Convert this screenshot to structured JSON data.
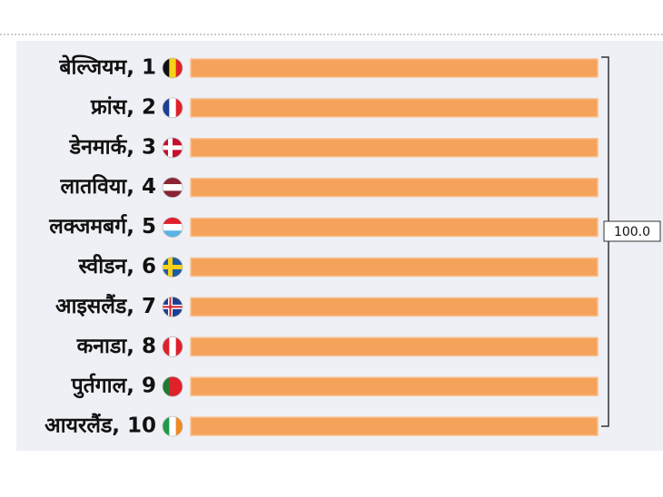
{
  "chart_data": {
    "type": "bar",
    "orientation": "horizontal",
    "categories": [
      "बेल्जियम, 1",
      "फ्रांस, 2",
      "डेनमार्क, 3",
      "लातविया, 4",
      "लक्जमबर्ग, 5",
      "स्वीडन, 6",
      "आइसलैंड, 7",
      "कनाडा, 8",
      "पुर्तगाल, 9",
      "आयरलैंड, 10"
    ],
    "values": [
      100,
      100,
      100,
      100,
      100,
      100,
      100,
      100,
      100,
      100
    ],
    "color": "#f5a25a",
    "xlim": [
      0,
      100
    ],
    "annotation": "100.0"
  }
}
